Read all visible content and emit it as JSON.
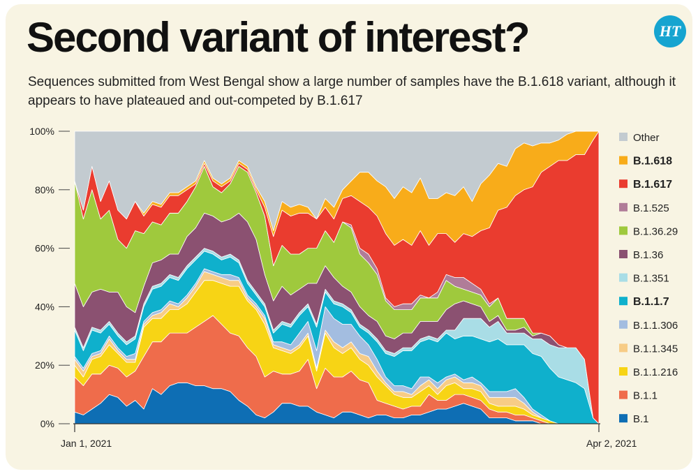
{
  "header": {
    "title": "Second variant of interest?",
    "subtitle": "Sequences submitted from West Bengal show a large number of samples have the B.1.618 variant, although it appears to have plateaued and out-competed by B.1.617",
    "logo_text": "HT"
  },
  "chart_data": {
    "type": "area",
    "stacked": true,
    "normalized": true,
    "x_ticks": [
      "Jan 1, 2021",
      "Apr 2, 2021"
    ],
    "y_ticks": [
      "0%",
      "20%",
      "40%",
      "60%",
      "80%",
      "100%"
    ],
    "ylim": [
      0,
      100
    ],
    "grid": false,
    "legend_placement": "right",
    "x_days": [
      0,
      3,
      6,
      9,
      12,
      15,
      18,
      21,
      24,
      27,
      30,
      33,
      36,
      39,
      42,
      45,
      48,
      51,
      54,
      57,
      60,
      63,
      66,
      69,
      72,
      75,
      78,
      81,
      84,
      87,
      90,
      93,
      96,
      99,
      102,
      105,
      108,
      111,
      114,
      117,
      120,
      123,
      126,
      129,
      132,
      135,
      138,
      141,
      144,
      147,
      150,
      153,
      156,
      159,
      162,
      165,
      168,
      171,
      174,
      177,
      180,
      182
    ],
    "series": [
      {
        "name": "B.1",
        "color": "#0e6eb4",
        "bold": false,
        "values": [
          4,
          3,
          5,
          7,
          10,
          9,
          6,
          8,
          5,
          12,
          10,
          13,
          14,
          14,
          13,
          13,
          12,
          12,
          11,
          8,
          6,
          3,
          2,
          4,
          7,
          7,
          6,
          6,
          4,
          3,
          2,
          4,
          4,
          3,
          2,
          3,
          3,
          2,
          2,
          3,
          3,
          4,
          5,
          5,
          6,
          7,
          6,
          5,
          2,
          2,
          2,
          1,
          1,
          1,
          0,
          0,
          0,
          0,
          0,
          0,
          0,
          0
        ]
      },
      {
        "name": "B.1.1",
        "color": "#ef6c4b",
        "bold": false,
        "values": [
          12,
          10,
          12,
          10,
          10,
          10,
          10,
          10,
          18,
          16,
          18,
          18,
          17,
          17,
          20,
          22,
          25,
          22,
          20,
          22,
          20,
          20,
          14,
          14,
          10,
          10,
          12,
          16,
          8,
          16,
          14,
          12,
          14,
          12,
          12,
          5,
          4,
          4,
          3,
          3,
          3,
          6,
          3,
          3,
          4,
          3,
          3,
          3,
          3,
          2,
          2,
          2,
          2,
          1,
          1,
          0,
          0,
          0,
          0,
          0,
          0,
          0
        ]
      },
      {
        "name": "B.1.1.216",
        "color": "#f7d415",
        "bold": false,
        "values": [
          4,
          3,
          5,
          6,
          7,
          5,
          5,
          3,
          10,
          8,
          8,
          8,
          8,
          10,
          12,
          14,
          12,
          14,
          16,
          17,
          16,
          16,
          18,
          8,
          8,
          7,
          8,
          8,
          6,
          12,
          10,
          8,
          8,
          7,
          6,
          8,
          6,
          4,
          4,
          3,
          5,
          3,
          2,
          5,
          4,
          2,
          3,
          3,
          2,
          2,
          2,
          3,
          2,
          1,
          1,
          1,
          0,
          0,
          0,
          0,
          0,
          0
        ]
      },
      {
        "name": "B.1.1.345",
        "color": "#f7cc86",
        "bold": false,
        "values": [
          2,
          2,
          1,
          1,
          2,
          1,
          1,
          1,
          1,
          1,
          2,
          2,
          1,
          2,
          2,
          3,
          2,
          2,
          2,
          2,
          1,
          1,
          2,
          1,
          1,
          1,
          1,
          1,
          1,
          1,
          2,
          2,
          2,
          2,
          3,
          2,
          1,
          1,
          2,
          1,
          2,
          2,
          2,
          2,
          2,
          2,
          2,
          2,
          2,
          3,
          3,
          3,
          2,
          1,
          0,
          0,
          0,
          0,
          0,
          0,
          0,
          0
        ]
      },
      {
        "name": "B.1.1.306",
        "color": "#a3bde0",
        "bold": false,
        "values": [
          1,
          1,
          1,
          1,
          1,
          1,
          1,
          2,
          1,
          1,
          1,
          1,
          1,
          1,
          1,
          1,
          1,
          1,
          2,
          1,
          1,
          1,
          1,
          1,
          2,
          2,
          4,
          4,
          6,
          8,
          8,
          8,
          6,
          6,
          4,
          4,
          2,
          2,
          2,
          2,
          3,
          1,
          2,
          1,
          1,
          1,
          2,
          1,
          2,
          2,
          2,
          3,
          2,
          1,
          1,
          0,
          0,
          0,
          0,
          0,
          0,
          0
        ]
      },
      {
        "name": "B.1.1.7",
        "color": "#0fb0cc",
        "bold": true,
        "values": [
          9,
          6,
          8,
          6,
          4,
          4,
          4,
          5,
          5,
          8,
          8,
          8,
          8,
          9,
          8,
          6,
          6,
          5,
          6,
          5,
          4,
          3,
          3,
          3,
          6,
          6,
          6,
          5,
          8,
          5,
          5,
          6,
          4,
          3,
          4,
          6,
          8,
          10,
          12,
          13,
          12,
          13,
          14,
          15,
          12,
          15,
          14,
          15,
          17,
          18,
          16,
          15,
          18,
          19,
          20,
          18,
          16,
          15,
          14,
          12,
          2,
          0
        ]
      },
      {
        "name": "B.1.351",
        "color": "#a9dde6",
        "bold": false,
        "values": [
          1,
          1,
          1,
          1,
          1,
          1,
          1,
          1,
          1,
          1,
          1,
          1,
          1,
          1,
          1,
          1,
          1,
          1,
          1,
          1,
          1,
          1,
          1,
          1,
          1,
          1,
          1,
          1,
          1,
          1,
          1,
          1,
          1,
          1,
          1,
          1,
          1,
          1,
          1,
          1,
          1,
          1,
          1,
          1,
          3,
          6,
          6,
          7,
          5,
          6,
          4,
          4,
          4,
          5,
          6,
          8,
          10,
          11,
          12,
          10,
          0,
          0
        ]
      },
      {
        "name": "B.1.36",
        "color": "#8b5171",
        "bold": false,
        "values": [
          15,
          14,
          12,
          14,
          10,
          14,
          12,
          8,
          6,
          8,
          8,
          7,
          8,
          10,
          10,
          12,
          12,
          12,
          12,
          16,
          20,
          18,
          10,
          10,
          12,
          10,
          8,
          7,
          14,
          8,
          8,
          6,
          6,
          6,
          5,
          6,
          5,
          5,
          5,
          5,
          6,
          5,
          6,
          7,
          9,
          6,
          5,
          4,
          2,
          2,
          1,
          1,
          2,
          1,
          2,
          3,
          1,
          0,
          0,
          0,
          0,
          0
        ]
      },
      {
        "name": "B.1.36.29",
        "color": "#9fc93d",
        "bold": false,
        "values": [
          35,
          30,
          35,
          24,
          28,
          18,
          20,
          28,
          18,
          14,
          12,
          14,
          14,
          12,
          14,
          16,
          10,
          10,
          12,
          16,
          17,
          16,
          20,
          12,
          14,
          14,
          12,
          12,
          12,
          12,
          12,
          22,
          22,
          18,
          18,
          16,
          12,
          10,
          8,
          8,
          8,
          8,
          8,
          10,
          6,
          4,
          4,
          4,
          5,
          6,
          4,
          4,
          3,
          1,
          0,
          0,
          0,
          0,
          0,
          0,
          0,
          0
        ]
      },
      {
        "name": "B.1.525",
        "color": "#b07c98",
        "bold": false,
        "values": [
          0,
          0,
          0,
          0,
          0,
          0,
          0,
          0,
          0,
          0,
          0,
          0,
          0,
          0,
          0,
          0,
          0,
          0,
          0,
          0,
          0,
          0,
          0,
          0,
          0,
          0,
          0,
          0,
          0,
          0,
          0,
          0,
          1,
          2,
          3,
          2,
          1,
          1,
          2,
          2,
          1,
          0,
          2,
          2,
          3,
          4,
          3,
          2,
          1,
          0,
          0,
          0,
          0,
          0,
          0,
          0,
          0,
          0,
          0,
          0,
          0,
          0
        ]
      },
      {
        "name": "B.1.617",
        "color": "#ea3c2f",
        "bold": true,
        "values": [
          0,
          3,
          8,
          6,
          10,
          10,
          10,
          10,
          6,
          6,
          6,
          6,
          6,
          4,
          1,
          1,
          2,
          2,
          1,
          1,
          1,
          1,
          3,
          10,
          12,
          13,
          14,
          12,
          10,
          8,
          8,
          8,
          10,
          16,
          16,
          18,
          22,
          21,
          22,
          20,
          22,
          18,
          20,
          14,
          12,
          15,
          16,
          20,
          26,
          30,
          38,
          42,
          44,
          50,
          55,
          58,
          63,
          64,
          66,
          70,
          95,
          100
        ]
      },
      {
        "name": "B.1.618",
        "color": "#f8ac1a",
        "bold": true,
        "values": [
          0,
          0,
          0,
          0,
          0,
          0,
          0,
          0,
          1,
          1,
          1,
          1,
          1,
          1,
          1,
          1,
          1,
          1,
          1,
          1,
          1,
          1,
          2,
          2,
          3,
          3,
          3,
          2,
          0,
          3,
          4,
          3,
          5,
          10,
          12,
          12,
          16,
          16,
          18,
          18,
          18,
          16,
          12,
          14,
          16,
          16,
          12,
          16,
          18,
          16,
          14,
          16,
          16,
          14,
          10,
          8,
          7,
          9,
          8,
          8,
          3,
          0
        ]
      },
      {
        "name": "Other",
        "color": "#c3cbd0",
        "bold": false,
        "values": null
      }
    ]
  }
}
